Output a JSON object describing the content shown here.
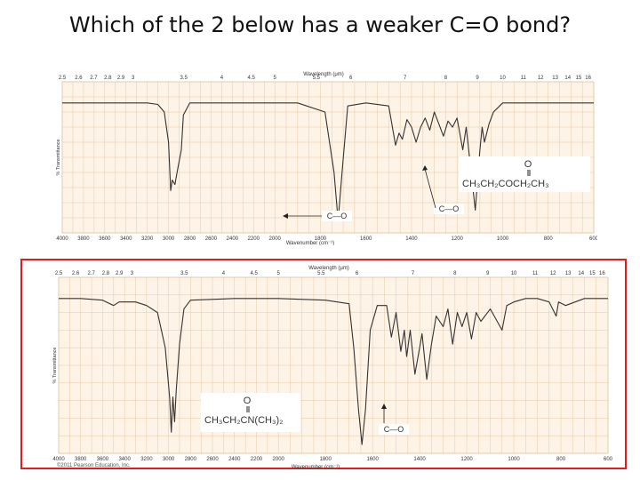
{
  "slide": {
    "title": "Which of the 2 below has a weaker C=O bond?",
    "credit": "©2011 Pearson Education, Inc.",
    "highlight_color": "#e51c1c"
  },
  "chart_data": [
    {
      "type": "line",
      "title": "",
      "xlabel": "Wavenumber (cm⁻¹)",
      "ylabel": "% Transmittance",
      "top_axis_label": "Wavelength (μm)",
      "x_ticks": [
        "4000",
        "3800",
        "3600",
        "3400",
        "3200",
        "3000",
        "2800",
        "2600",
        "2400",
        "2200",
        "2000",
        "1800",
        "1600",
        "1400",
        "1200",
        "1000",
        "800",
        "600"
      ],
      "top_ticks": [
        "2.5",
        "2.6",
        "2.7",
        "2.8",
        "2.9",
        "3",
        "3.5",
        "4",
        "4.5",
        "5",
        "5.5",
        "6",
        "7",
        "8",
        "9",
        "10",
        "11",
        "12",
        "13",
        "14",
        "15",
        "16"
      ],
      "xlim": [
        4000,
        600
      ],
      "ylim": [
        0,
        100
      ],
      "grid": true,
      "structure": {
        "top": "O",
        "main": "CH₃CH₂COCH₂CH₃"
      },
      "peak_label": "C—O",
      "series": [
        {
          "points": [
            [
              4000,
              86
            ],
            [
              3600,
              86
            ],
            [
              3200,
              86
            ],
            [
              3100,
              85
            ],
            [
              3040,
              80
            ],
            [
              3000,
              60
            ],
            [
              2980,
              28
            ],
            [
              2965,
              35
            ],
            [
              2940,
              32
            ],
            [
              2920,
              40
            ],
            [
              2880,
              55
            ],
            [
              2860,
              78
            ],
            [
              2800,
              86
            ],
            [
              2200,
              86
            ],
            [
              1900,
              86
            ],
            [
              1780,
              80
            ],
            [
              1740,
              40
            ],
            [
              1722,
              8
            ],
            [
              1705,
              40
            ],
            [
              1680,
              84
            ],
            [
              1600,
              86
            ],
            [
              1500,
              84
            ],
            [
              1470,
              58
            ],
            [
              1455,
              66
            ],
            [
              1440,
              62
            ],
            [
              1420,
              75
            ],
            [
              1400,
              70
            ],
            [
              1380,
              60
            ],
            [
              1360,
              70
            ],
            [
              1340,
              76
            ],
            [
              1320,
              68
            ],
            [
              1300,
              80
            ],
            [
              1260,
              64
            ],
            [
              1240,
              74
            ],
            [
              1220,
              70
            ],
            [
              1200,
              76
            ],
            [
              1175,
              55
            ],
            [
              1160,
              70
            ],
            [
              1120,
              15
            ],
            [
              1100,
              55
            ],
            [
              1090,
              70
            ],
            [
              1080,
              60
            ],
            [
              1060,
              72
            ],
            [
              1040,
              80
            ],
            [
              1000,
              86
            ],
            [
              900,
              86
            ],
            [
              800,
              86
            ],
            [
              700,
              86
            ],
            [
              600,
              86
            ]
          ]
        }
      ],
      "colors": {
        "grid": "#e7c9a2",
        "line": "#333333",
        "bg": "#fdf3e6",
        "frame": "#dcc2a2"
      }
    },
    {
      "type": "line",
      "title": "",
      "xlabel": "Wavenumber (cm⁻¹)",
      "ylabel": "% Transmittance",
      "top_axis_label": "Wavelength (μm)",
      "x_ticks": [
        "4000",
        "3800",
        "3600",
        "3400",
        "3200",
        "3000",
        "2800",
        "2600",
        "2400",
        "2200",
        "2000",
        "1800",
        "1600",
        "1400",
        "1200",
        "1000",
        "800",
        "600"
      ],
      "top_ticks": [
        "2.5",
        "2.6",
        "2.7",
        "2.8",
        "2.9",
        "3",
        "3.5",
        "4",
        "4.5",
        "5",
        "5.5",
        "6",
        "7",
        "8",
        "9",
        "10",
        "11",
        "12",
        "13",
        "14",
        "15",
        "16"
      ],
      "xlim": [
        4000,
        600
      ],
      "ylim": [
        0,
        100
      ],
      "grid": true,
      "structure": {
        "top": "O",
        "main": "CH₃CH₂CN(CH₃)₂"
      },
      "peak_label": "C—O",
      "series": [
        {
          "points": [
            [
              4000,
              88
            ],
            [
              3800,
              88
            ],
            [
              3600,
              87
            ],
            [
              3500,
              84
            ],
            [
              3450,
              86
            ],
            [
              3300,
              86
            ],
            [
              3200,
              84
            ],
            [
              3100,
              80
            ],
            [
              3030,
              60
            ],
            [
              2990,
              32
            ],
            [
              2975,
              12
            ],
            [
              2960,
              32
            ],
            [
              2945,
              18
            ],
            [
              2930,
              36
            ],
            [
              2900,
              62
            ],
            [
              2860,
              82
            ],
            [
              2800,
              87
            ],
            [
              2400,
              88
            ],
            [
              2000,
              88
            ],
            [
              1800,
              87
            ],
            [
              1700,
              85
            ],
            [
              1680,
              60
            ],
            [
              1660,
              25
            ],
            [
              1645,
              5
            ],
            [
              1630,
              25
            ],
            [
              1610,
              70
            ],
            [
              1580,
              84
            ],
            [
              1540,
              84
            ],
            [
              1520,
              66
            ],
            [
              1500,
              80
            ],
            [
              1480,
              58
            ],
            [
              1465,
              70
            ],
            [
              1455,
              55
            ],
            [
              1440,
              70
            ],
            [
              1420,
              45
            ],
            [
              1400,
              60
            ],
            [
              1390,
              68
            ],
            [
              1370,
              42
            ],
            [
              1350,
              62
            ],
            [
              1330,
              78
            ],
            [
              1300,
              72
            ],
            [
              1280,
              82
            ],
            [
              1260,
              62
            ],
            [
              1240,
              80
            ],
            [
              1220,
              72
            ],
            [
              1200,
              80
            ],
            [
              1180,
              65
            ],
            [
              1160,
              80
            ],
            [
              1140,
              75
            ],
            [
              1100,
              82
            ],
            [
              1050,
              70
            ],
            [
              1030,
              84
            ],
            [
              1000,
              86
            ],
            [
              950,
              88
            ],
            [
              900,
              88
            ],
            [
              850,
              86
            ],
            [
              820,
              78
            ],
            [
              810,
              86
            ],
            [
              780,
              84
            ],
            [
              700,
              88
            ],
            [
              600,
              88
            ]
          ]
        }
      ],
      "colors": {
        "grid": "#e7c9a2",
        "line": "#333333",
        "bg": "#fdf3e6",
        "frame": "#dcc2a2"
      }
    }
  ]
}
